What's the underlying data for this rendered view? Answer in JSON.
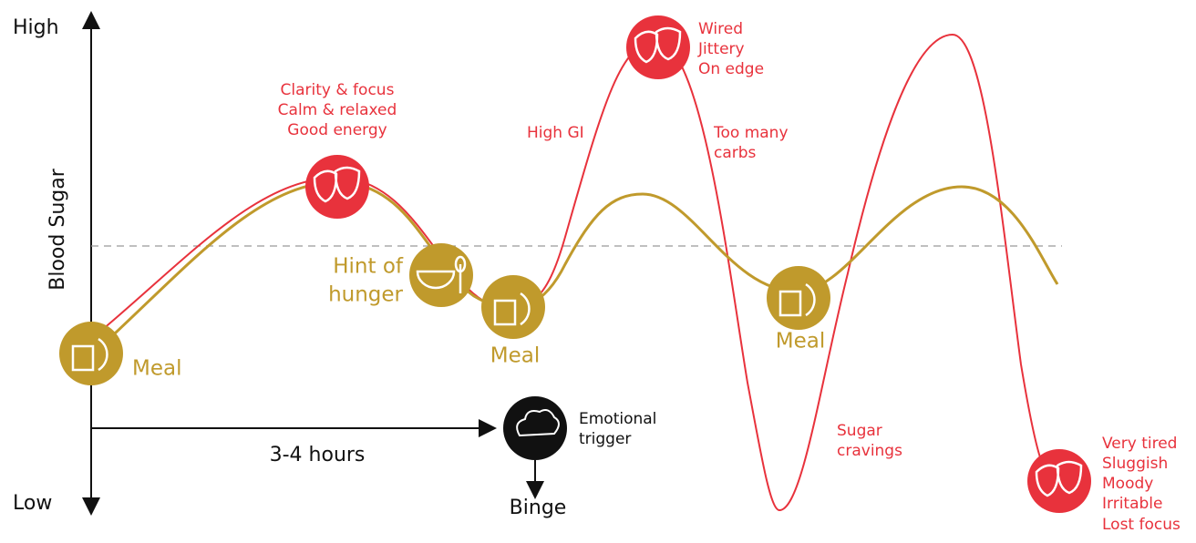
{
  "axis": {
    "high": "High",
    "low": "Low",
    "label": "Blood Sugar",
    "duration": "3-4 hours"
  },
  "annotations": {
    "good": [
      "Clarity & focus",
      "Calm & relaxed",
      "Good energy"
    ],
    "hunger": [
      "Hint of",
      "hunger"
    ],
    "meals": [
      "Meal",
      "Meal",
      "Meal"
    ],
    "high_gi": "High GI",
    "wired": [
      "Wired",
      "Jittery",
      "On edge"
    ],
    "carbs": [
      "Too many",
      "carbs"
    ],
    "cravings": [
      "Sugar",
      "cravings"
    ],
    "tired": [
      "Very tired",
      "Sluggish",
      "Moody",
      "Irritable",
      "Lost focus"
    ],
    "trigger": [
      "Emotional",
      "trigger"
    ],
    "binge": "Binge"
  }
}
